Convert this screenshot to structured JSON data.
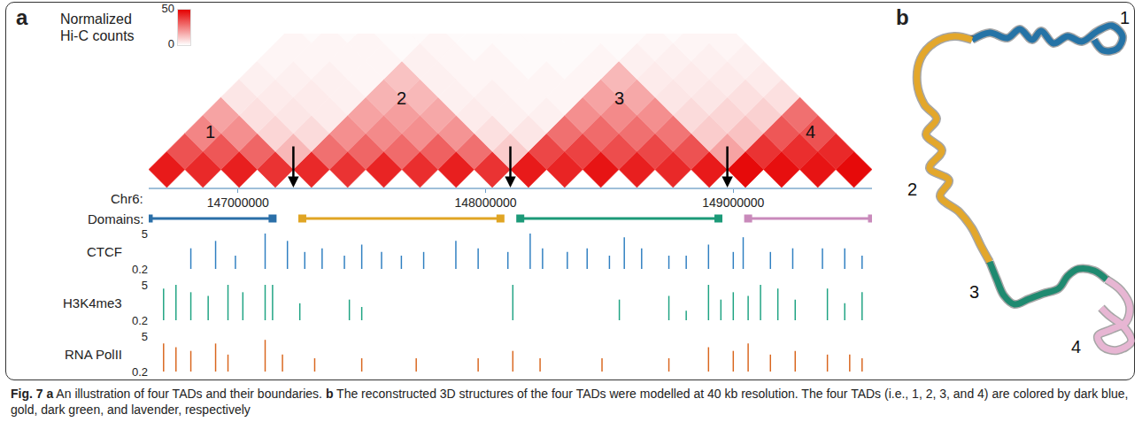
{
  "chart_data": [
    {
      "panel": "a",
      "type": "hic_triangle",
      "colorbar_title": "Normalized Hi-C counts",
      "color_range": [
        0,
        50
      ],
      "color_ticks": [
        0,
        50
      ],
      "colors": [
        "#ffffff",
        "#e50000"
      ],
      "x_label": "Chr6:",
      "xlim": [
        146640000,
        149560000
      ],
      "xticks": [
        147000000,
        148000000,
        149000000
      ],
      "bin_start": 146640000,
      "bin_size": 146000,
      "diagonals": [
        [
          45,
          42,
          44,
          40,
          42,
          40,
          43,
          41,
          44,
          40,
          45,
          43,
          46,
          44,
          42,
          45,
          48,
          47,
          46,
          48
        ],
        [
          34,
          33,
          30,
          14,
          28,
          30,
          29,
          31,
          28,
          10,
          36,
          37,
          35,
          36,
          34,
          18,
          40,
          41,
          42
        ],
        [
          24,
          22,
          8,
          7,
          22,
          23,
          22,
          21,
          6,
          5,
          28,
          29,
          28,
          27,
          10,
          12,
          33,
          34
        ],
        [
          18,
          6,
          5,
          4,
          18,
          19,
          17,
          4,
          3,
          3,
          22,
          23,
          22,
          7,
          8,
          9,
          28
        ],
        [
          5,
          4,
          4,
          3,
          15,
          14,
          3,
          3,
          2,
          2,
          18,
          17,
          5,
          5,
          6,
          6
        ],
        [
          3,
          3,
          3,
          2,
          12,
          3,
          2,
          2,
          2,
          2,
          14,
          4,
          4,
          4,
          4
        ],
        [
          2,
          2,
          2,
          2,
          3,
          2,
          2,
          1,
          1,
          2,
          3,
          3,
          3,
          3
        ],
        [
          2,
          2,
          2,
          1,
          2,
          1,
          1,
          1,
          1,
          1,
          2,
          2,
          2
        ],
        [
          1,
          1,
          1,
          1,
          1,
          1,
          1,
          1,
          1,
          1,
          1,
          2
        ]
      ],
      "boundaries": [
        147224000,
        148100000,
        148976000
      ],
      "domains_label": "Domains:",
      "domains": [
        {
          "label": "1",
          "start": 146640000,
          "end": 147140000,
          "color": "#2b6fa8"
        },
        {
          "label": "2",
          "start": 147260000,
          "end": 148060000,
          "color": "#e0a524"
        },
        {
          "label": "3",
          "start": 148140000,
          "end": 148940000,
          "color": "#1c9a78"
        },
        {
          "label": "4",
          "start": 149060000,
          "end": 149560000,
          "color": "#c98abb"
        }
      ]
    },
    {
      "panel": "a",
      "type": "bar",
      "xlim": [
        146640000,
        149560000
      ],
      "ylim": [
        0.2,
        5
      ],
      "yticks": [
        0.2,
        5
      ],
      "series": [
        {
          "name": "CTCF",
          "color": "#2f7fc1",
          "x": [
            146810000,
            146910000,
            146990000,
            147110000,
            147200000,
            147270000,
            147340000,
            147430000,
            147500000,
            147580000,
            147660000,
            147750000,
            147880000,
            147970000,
            148090000,
            148180000,
            148230000,
            148330000,
            148410000,
            148500000,
            148560000,
            148630000,
            148740000,
            148810000,
            148900000,
            149000000,
            149040000,
            149150000,
            149240000,
            149360000,
            149450000,
            149520000
          ],
          "values": [
            3,
            4,
            2,
            5,
            4,
            2.5,
            3,
            2,
            3.5,
            2.5,
            2,
            2.5,
            4,
            3,
            2.5,
            5,
            3,
            2.5,
            3,
            2,
            4.5,
            3,
            2,
            2,
            3.5,
            2.5,
            4.5,
            2.5,
            3,
            3,
            3,
            2
          ]
        },
        {
          "name": "H3K4me3",
          "color": "#1ea382",
          "x": [
            146700000,
            146750000,
            146810000,
            146880000,
            146960000,
            147020000,
            147110000,
            147140000,
            147250000,
            147450000,
            147500000,
            148110000,
            148540000,
            148740000,
            148810000,
            148900000,
            148950000,
            149000000,
            149060000,
            149110000,
            149180000,
            149250000,
            149380000,
            149450000,
            149520000
          ],
          "values": [
            4.5,
            5,
            4,
            3.5,
            5,
            4,
            5,
            5,
            2.5,
            3,
            2,
            5,
            3,
            3.5,
            1.5,
            5,
            3,
            4,
            3.5,
            5,
            4.5,
            3,
            4.5,
            2.5,
            4
          ]
        },
        {
          "name": "RNA PolII",
          "color": "#d9661e",
          "x": [
            146700000,
            146750000,
            146810000,
            146910000,
            146960000,
            147110000,
            147180000,
            147310000,
            147500000,
            147720000,
            147970000,
            148110000,
            148220000,
            148470000,
            148740000,
            148900000,
            149000000,
            149060000,
            149150000,
            149250000,
            149380000,
            149470000,
            149520000
          ],
          "values": [
            4,
            3.5,
            3,
            4,
            2.5,
            4.5,
            2.5,
            2,
            2,
            2,
            2,
            3,
            2,
            2,
            2,
            3.5,
            3,
            4,
            2.5,
            3,
            2.5,
            2.5,
            2
          ]
        }
      ]
    },
    {
      "panel": "b",
      "type": "line",
      "tick_labels": false,
      "xlim": [
        1010,
        1282
      ],
      "ylim": [
        420,
        8
      ],
      "series": [
        {
          "name": "1",
          "color": "#2573a6",
          "label_pos": [
            1270,
            20
          ],
          "x": [
            1098,
            1118,
            1138,
            1152,
            1166,
            1176,
            1190,
            1206,
            1222,
            1240,
            1256,
            1268,
            1262,
            1246,
            1236
          ],
          "y": [
            45,
            37,
            43,
            33,
            45,
            35,
            49,
            41,
            47,
            35,
            29,
            41,
            55,
            57,
            45
          ]
        },
        {
          "name": "2",
          "color": "#e3a72b",
          "label_pos": [
            1030,
            214
          ],
          "x": [
            1098,
            1078,
            1056,
            1040,
            1036,
            1044,
            1058,
            1046,
            1064,
            1050,
            1072,
            1062,
            1084,
            1098,
            1108,
            1118
          ],
          "y": [
            45,
            41,
            48,
            66,
            94,
            118,
            134,
            152,
            170,
            190,
            204,
            222,
            240,
            258,
            278,
            296
          ]
        },
        {
          "name": "3",
          "color": "#1f8a70",
          "label_pos": [
            1100,
            330
          ],
          "x": [
            1118,
            1126,
            1134,
            1146,
            1162,
            1178,
            1196,
            1206,
            1218,
            1236,
            1250
          ],
          "y": [
            296,
            316,
            334,
            344,
            338,
            332,
            326,
            312,
            304,
            306,
            316
          ]
        },
        {
          "name": "4",
          "color": "#e7b6d3",
          "label_pos": [
            1215,
            392
          ],
          "x": [
            1250,
            1266,
            1276,
            1272,
            1256,
            1240,
            1246,
            1262,
            1278,
            1270,
            1252,
            1244
          ],
          "y": [
            316,
            328,
            346,
            364,
            372,
            380,
            392,
            396,
            386,
            370,
            356,
            348
          ]
        }
      ]
    }
  ],
  "caption": {
    "label": "Fig. 7",
    "parts": [
      {
        "letter": "a",
        "text": "An illustration of four TADs and their boundaries."
      },
      {
        "letter": "b",
        "text": "The reconstructed 3D structures of the four TADs were modelled at 40 kb resolution. The four TADs (i.e., 1, 2, 3, and 4) are colored by dark blue, gold, dark green, and lavender, respectively"
      }
    ]
  }
}
